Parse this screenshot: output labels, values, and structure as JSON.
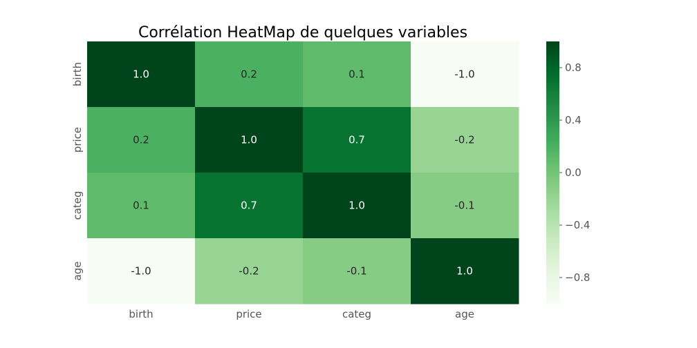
{
  "chart_data": {
    "type": "heatmap",
    "title": "Corrélation HeatMap de quelques variables",
    "x_labels": [
      "birth",
      "price",
      "categ",
      "age"
    ],
    "y_labels": [
      "birth",
      "price",
      "categ",
      "age"
    ],
    "values": [
      [
        1.0,
        0.2,
        0.1,
        -1.0
      ],
      [
        0.2,
        1.0,
        0.7,
        -0.2
      ],
      [
        0.1,
        0.7,
        1.0,
        -0.1
      ],
      [
        -1.0,
        -0.2,
        -0.1,
        1.0
      ]
    ],
    "annotations": [
      [
        "1.0",
        "0.2",
        "0.1",
        "-1.0"
      ],
      [
        "0.2",
        "1.0",
        "0.7",
        "-0.2"
      ],
      [
        "0.1",
        "0.7",
        "1.0",
        "-0.1"
      ],
      [
        "-1.0",
        "-0.2",
        "-0.1",
        "1.0"
      ]
    ],
    "colormap": "Greens",
    "vmin": -1.0,
    "vmax": 1.0,
    "colorbar_ticks": [
      0.8,
      0.4,
      0.0,
      -0.4,
      -0.8
    ],
    "colorbar_tick_labels": [
      "0.8",
      "0.4",
      "0.0",
      "−0.4",
      "−0.8"
    ]
  }
}
